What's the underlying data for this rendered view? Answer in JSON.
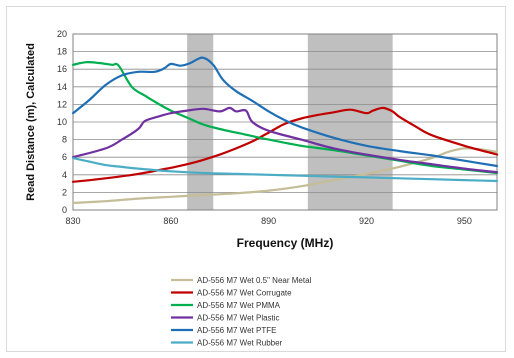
{
  "chart_data": {
    "type": "line",
    "title": "",
    "xlabel": "Frequency (MHz)",
    "ylabel": "Read Distance (m), Calculated",
    "xlim": [
      830,
      960
    ],
    "ylim": [
      0,
      20
    ],
    "x_ticks": [
      "830",
      "860",
      "890",
      "920",
      "950"
    ],
    "x_tick_values": [
      830,
      860,
      890,
      920,
      950
    ],
    "y_ticks": [
      "0",
      "2",
      "4",
      "6",
      "8",
      "10",
      "12",
      "14",
      "16",
      "18",
      "20"
    ],
    "y_tick_values": [
      0,
      2,
      4,
      6,
      8,
      10,
      12,
      14,
      16,
      18,
      20
    ],
    "grid": "horizontal",
    "legend_position": "bottom",
    "shaded_bands": [
      {
        "from": 865,
        "to": 873,
        "color": "#bfbfbf"
      },
      {
        "from": 902,
        "to": 928,
        "color": "#bfbfbf"
      }
    ],
    "series": [
      {
        "name": "AD-556 M7 Wet 0.5\" Near Metal",
        "color": "#c4bd97",
        "x": [
          830,
          840,
          850,
          860,
          870,
          880,
          890,
          900,
          910,
          920,
          930,
          940,
          945,
          950,
          955,
          960
        ],
        "y": [
          0.8,
          1.0,
          1.3,
          1.5,
          1.7,
          1.9,
          2.2,
          2.7,
          3.4,
          4.1,
          4.9,
          5.9,
          6.6,
          7.0,
          6.9,
          6.6
        ]
      },
      {
        "name": "AD-556 M7 Wet Corrugate",
        "color": "#c00000",
        "x": [
          830,
          840,
          850,
          860,
          865,
          870,
          875,
          880,
          885,
          890,
          895,
          900,
          905,
          910,
          915,
          920,
          922,
          925,
          928,
          930,
          935,
          940,
          950,
          960
        ],
        "y": [
          3.2,
          3.6,
          4.1,
          4.8,
          5.2,
          5.7,
          6.3,
          7.0,
          7.8,
          8.8,
          9.8,
          10.4,
          10.8,
          11.1,
          11.4,
          11.0,
          11.3,
          11.6,
          11.2,
          10.6,
          9.5,
          8.5,
          7.3,
          6.3
        ]
      },
      {
        "name": "AD-556 M7 Wet PMMA",
        "color": "#00b050",
        "x": [
          830,
          834,
          838,
          842,
          844,
          848,
          852,
          856,
          860,
          865,
          870,
          875,
          880,
          885,
          890,
          900,
          910,
          920,
          930,
          940,
          950,
          960
        ],
        "y": [
          16.5,
          16.8,
          16.7,
          16.5,
          16.4,
          14.0,
          13.0,
          12.1,
          11.3,
          10.5,
          9.7,
          9.2,
          8.8,
          8.4,
          8.0,
          7.3,
          6.8,
          6.2,
          5.6,
          5.0,
          4.6,
          4.2
        ]
      },
      {
        "name": "AD-556 M7 Wet Plastic",
        "color": "#7030a0",
        "x": [
          830,
          840,
          845,
          850,
          852,
          856,
          860,
          865,
          870,
          875,
          878,
          880,
          883,
          885,
          890,
          900,
          910,
          920,
          930,
          940,
          950,
          960
        ],
        "y": [
          6.0,
          7.0,
          8.0,
          9.2,
          10.1,
          10.6,
          11.0,
          11.3,
          11.5,
          11.2,
          11.6,
          11.2,
          11.3,
          10.0,
          9.0,
          8.0,
          7.0,
          6.3,
          5.7,
          5.2,
          4.7,
          4.3
        ]
      },
      {
        "name": "AD-556 M7 Wet PTFE",
        "color": "#1f6fb5",
        "x": [
          830,
          835,
          840,
          845,
          850,
          855,
          858,
          860,
          863,
          866,
          868,
          870,
          873,
          876,
          880,
          885,
          890,
          895,
          900,
          910,
          920,
          930,
          940,
          950,
          960
        ],
        "y": [
          11.0,
          12.5,
          14.2,
          15.3,
          15.7,
          15.7,
          16.1,
          16.6,
          16.4,
          16.7,
          17.1,
          17.3,
          16.5,
          14.8,
          13.5,
          12.4,
          11.2,
          10.2,
          9.4,
          8.2,
          7.3,
          6.7,
          6.2,
          5.6,
          5.0
        ]
      },
      {
        "name": "AD-556 M7 Wet Rubber",
        "color": "#4bacc6",
        "x": [
          830,
          835,
          840,
          845,
          850,
          860,
          870,
          880,
          890,
          900,
          910,
          920,
          930,
          940,
          950,
          960
        ],
        "y": [
          5.9,
          5.5,
          5.1,
          4.9,
          4.7,
          4.4,
          4.2,
          4.1,
          4.0,
          3.9,
          3.8,
          3.7,
          3.6,
          3.5,
          3.4,
          3.3
        ]
      }
    ]
  }
}
